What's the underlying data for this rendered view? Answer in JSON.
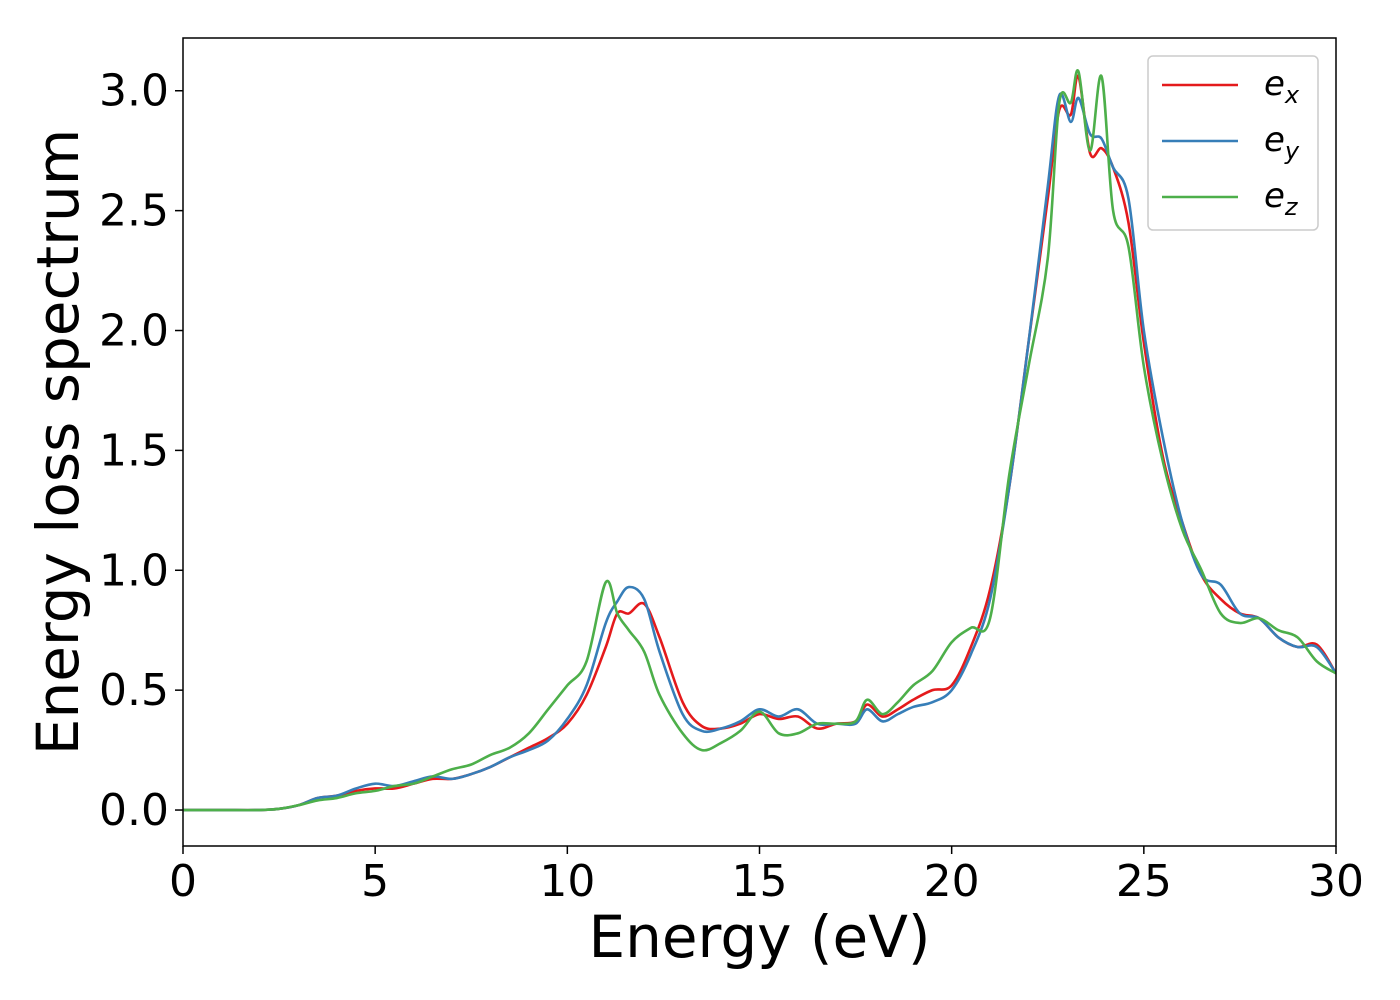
{
  "chart_data": {
    "type": "line",
    "xlabel": "Energy (eV)",
    "ylabel": "Energy loss spectrum",
    "xlim": [
      0,
      30
    ],
    "ylim": [
      -0.15,
      3.22
    ],
    "x_ticks": [
      "0",
      "5",
      "10",
      "15",
      "20",
      "25",
      "30"
    ],
    "y_ticks": [
      "0.0",
      "0.5",
      "1.0",
      "1.5",
      "2.0",
      "2.5",
      "3.0"
    ],
    "grid": false,
    "legend_position": "top-right",
    "series": [
      {
        "name": "e_x",
        "legend_base": "e",
        "legend_sub": "x",
        "color": "#e41a1c",
        "x": [
          0,
          1,
          2,
          2.5,
          3,
          3.5,
          4,
          4.5,
          5,
          5.5,
          6,
          6.5,
          7,
          7.5,
          8,
          8.5,
          9,
          9.5,
          10,
          10.5,
          11,
          11.3,
          11.6,
          12,
          12.4,
          13,
          13.5,
          14,
          14.5,
          15,
          15.5,
          16,
          16.5,
          17,
          17.5,
          17.8,
          18.2,
          18.6,
          19,
          19.5,
          20,
          20.5,
          21,
          21.5,
          22,
          22.5,
          22.8,
          23.1,
          23.3,
          23.6,
          23.9,
          24.2,
          24.6,
          25,
          25.5,
          26,
          26.5,
          27,
          27.5,
          28,
          28.5,
          29,
          29.5,
          30
        ],
        "y": [
          0,
          0,
          0,
          0.005,
          0.02,
          0.05,
          0.06,
          0.08,
          0.09,
          0.09,
          0.11,
          0.13,
          0.13,
          0.15,
          0.18,
          0.22,
          0.26,
          0.3,
          0.36,
          0.48,
          0.68,
          0.82,
          0.82,
          0.86,
          0.72,
          0.45,
          0.35,
          0.34,
          0.36,
          0.4,
          0.38,
          0.39,
          0.34,
          0.36,
          0.37,
          0.44,
          0.39,
          0.42,
          0.46,
          0.5,
          0.52,
          0.68,
          0.92,
          1.35,
          1.95,
          2.55,
          2.92,
          2.9,
          3.06,
          2.74,
          2.76,
          2.68,
          2.45,
          1.95,
          1.47,
          1.2,
          0.98,
          0.88,
          0.82,
          0.8,
          0.72,
          0.68,
          0.69,
          0.57
        ]
      },
      {
        "name": "e_y",
        "legend_base": "e",
        "legend_sub": "y",
        "color": "#377eb8",
        "x": [
          0,
          1,
          2,
          2.5,
          3,
          3.5,
          4,
          4.5,
          5,
          5.5,
          6,
          6.5,
          7,
          7.5,
          8,
          8.5,
          9,
          9.5,
          10,
          10.5,
          11,
          11.3,
          11.6,
          12,
          12.4,
          13,
          13.5,
          14,
          14.5,
          15,
          15.5,
          16,
          16.5,
          17,
          17.5,
          17.8,
          18.2,
          18.6,
          19,
          19.5,
          20,
          20.5,
          21,
          21.5,
          22,
          22.5,
          22.8,
          23.1,
          23.3,
          23.6,
          23.9,
          24.2,
          24.6,
          25,
          25.5,
          26,
          26.5,
          27,
          27.5,
          28,
          28.5,
          29,
          29.5,
          30
        ],
        "y": [
          0,
          0,
          0,
          0.005,
          0.02,
          0.05,
          0.06,
          0.09,
          0.11,
          0.1,
          0.12,
          0.14,
          0.13,
          0.15,
          0.18,
          0.22,
          0.25,
          0.29,
          0.38,
          0.52,
          0.78,
          0.87,
          0.93,
          0.88,
          0.66,
          0.4,
          0.33,
          0.34,
          0.37,
          0.42,
          0.39,
          0.42,
          0.36,
          0.36,
          0.36,
          0.42,
          0.37,
          0.4,
          0.43,
          0.45,
          0.5,
          0.65,
          0.88,
          1.35,
          1.95,
          2.6,
          2.98,
          2.87,
          2.97,
          2.82,
          2.8,
          2.68,
          2.55,
          2.0,
          1.55,
          1.2,
          0.98,
          0.94,
          0.82,
          0.8,
          0.72,
          0.68,
          0.68,
          0.57
        ]
      },
      {
        "name": "e_z",
        "legend_base": "e",
        "legend_sub": "z",
        "color": "#4daf4a",
        "x": [
          0,
          1,
          2,
          2.5,
          3,
          3.5,
          4,
          4.5,
          5,
          5.5,
          6,
          6.5,
          7,
          7.5,
          8,
          8.5,
          9,
          9.5,
          10,
          10.5,
          11,
          11.3,
          11.6,
          12,
          12.4,
          13,
          13.5,
          14,
          14.5,
          15,
          15.5,
          16,
          16.5,
          17,
          17.5,
          17.8,
          18.2,
          18.6,
          19,
          19.5,
          20,
          20.5,
          21,
          21.5,
          22,
          22.5,
          22.8,
          23.1,
          23.3,
          23.6,
          23.9,
          24.2,
          24.6,
          25,
          25.5,
          26,
          26.5,
          27,
          27.5,
          28,
          28.5,
          29,
          29.5,
          30
        ],
        "y": [
          0,
          0,
          0,
          0.005,
          0.02,
          0.04,
          0.05,
          0.07,
          0.08,
          0.1,
          0.11,
          0.14,
          0.17,
          0.19,
          0.23,
          0.26,
          0.32,
          0.42,
          0.52,
          0.62,
          0.95,
          0.82,
          0.75,
          0.66,
          0.48,
          0.32,
          0.25,
          0.28,
          0.33,
          0.41,
          0.32,
          0.32,
          0.36,
          0.36,
          0.37,
          0.46,
          0.4,
          0.45,
          0.52,
          0.58,
          0.7,
          0.76,
          0.8,
          1.4,
          1.85,
          2.3,
          2.95,
          2.95,
          3.08,
          2.75,
          3.06,
          2.5,
          2.35,
          1.85,
          1.45,
          1.17,
          1.0,
          0.82,
          0.78,
          0.8,
          0.75,
          0.72,
          0.62,
          0.57
        ]
      }
    ]
  }
}
